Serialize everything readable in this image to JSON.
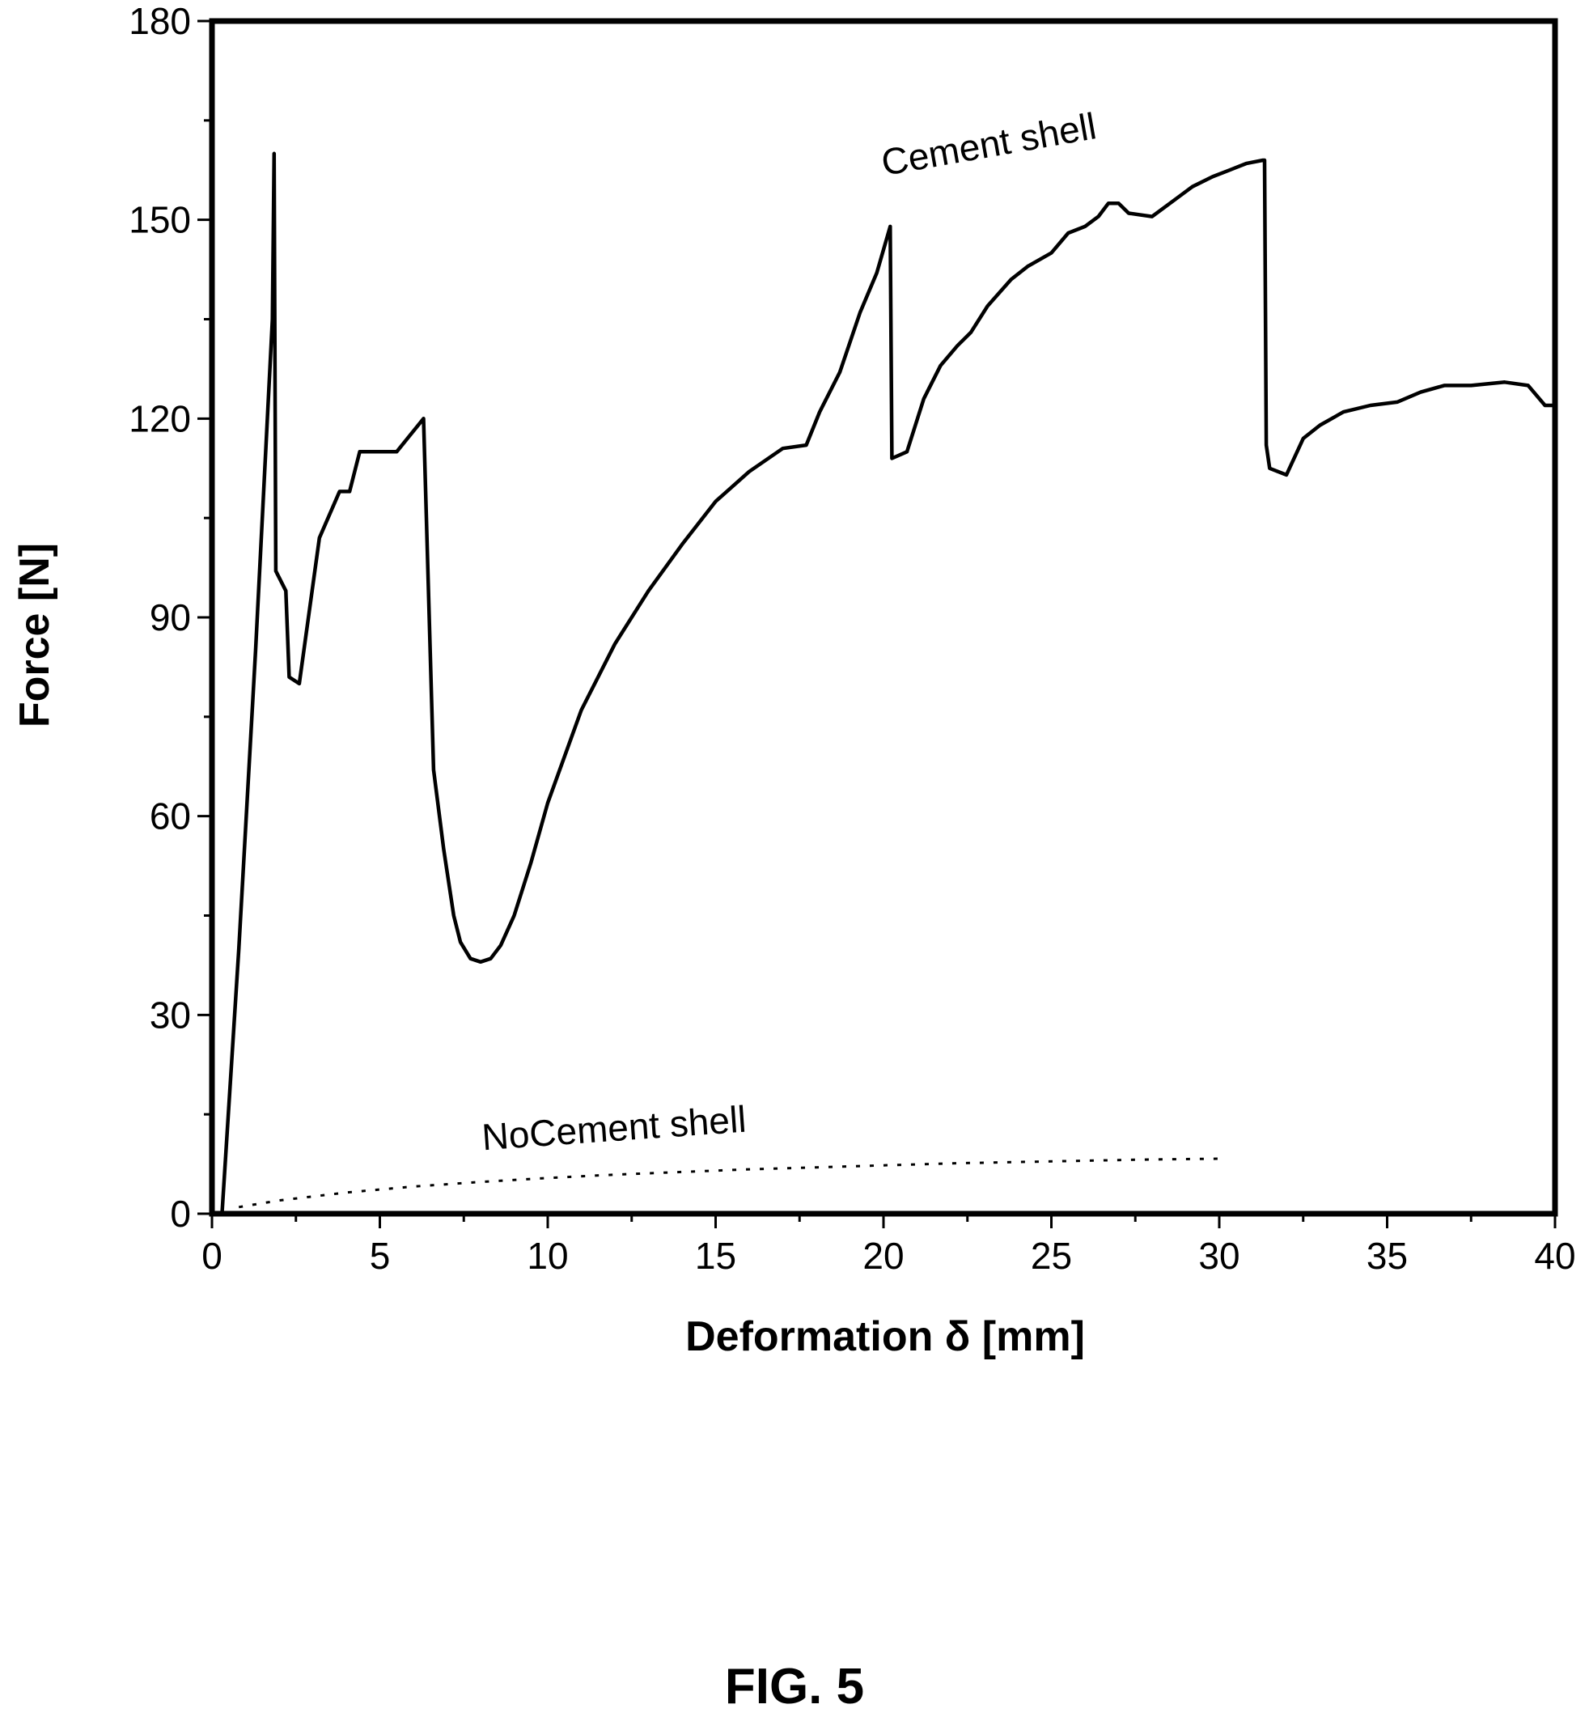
{
  "figure_label": "FIG. 5",
  "chart_data": {
    "type": "line",
    "title": "",
    "xlabel": "Deformation δ [mm]",
    "ylabel": "Force [N]",
    "xlim": [
      0,
      40
    ],
    "ylim": [
      0,
      180
    ],
    "xticks": [
      0,
      5,
      10,
      15,
      20,
      25,
      30,
      35,
      40
    ],
    "yticks": [
      0,
      30,
      60,
      90,
      120,
      150,
      180
    ],
    "grid": false,
    "legend": "none",
    "series": [
      {
        "name": "Cement shell",
        "style": "solid",
        "x": [
          0.3,
          0.8,
          1.3,
          1.8,
          1.85,
          1.9,
          2.2,
          2.3,
          2.6,
          3.2,
          3.8,
          4.1,
          4.4,
          5.0,
          5.5,
          6.3,
          6.6,
          6.9,
          7.2,
          7.4,
          7.7,
          8.0,
          8.3,
          8.6,
          9.0,
          9.5,
          10.0,
          11.0,
          12.0,
          13.0,
          14.0,
          15.0,
          16.0,
          17.0,
          17.7,
          18.1,
          18.7,
          19.3,
          19.8,
          20.2,
          20.25,
          20.7,
          21.2,
          21.7,
          22.2,
          22.6,
          23.1,
          23.8,
          24.3,
          25.0,
          25.5,
          26.0,
          26.4,
          26.7,
          27.0,
          27.3,
          28.0,
          28.8,
          29.2,
          29.8,
          30.3,
          30.8,
          31.3,
          31.35,
          31.4,
          31.5,
          32.0,
          32.5,
          33.0,
          33.7,
          34.5,
          35.3,
          36.0,
          36.7,
          37.5,
          38.5,
          39.2,
          39.7,
          40.0
        ],
        "y": [
          0,
          40,
          85,
          135,
          160,
          97,
          94,
          81,
          80,
          102,
          109,
          109,
          115,
          115,
          115,
          120,
          67,
          55,
          45,
          41,
          38.5,
          38,
          38.5,
          40.5,
          45,
          53,
          62,
          76,
          86,
          94,
          101,
          107.5,
          112,
          115.5,
          116,
          121,
          127,
          136,
          142,
          149,
          114,
          115,
          123,
          128,
          131,
          133,
          137,
          141,
          143,
          145,
          148,
          149,
          150.5,
          152.5,
          152.5,
          151,
          150.5,
          153.5,
          155,
          156.5,
          157.5,
          158.5,
          159,
          159,
          116,
          112.5,
          111.5,
          117,
          119,
          121,
          122,
          122.5,
          124,
          125,
          125,
          125.5,
          125,
          122,
          122
        ]
      },
      {
        "name": "NoCement shell",
        "style": "dotted",
        "x": [
          0.8,
          2,
          4,
          6,
          8,
          10,
          12,
          14,
          16,
          18,
          20,
          22,
          24,
          26,
          28,
          30
        ],
        "y": [
          1,
          2,
          3.2,
          4.1,
          4.8,
          5.4,
          5.9,
          6.3,
          6.7,
          7.0,
          7.3,
          7.6,
          7.8,
          8.0,
          8.2,
          8.3
        ]
      }
    ],
    "annotations": [
      {
        "text": "Cement shell",
        "x": 23.2,
        "y": 159.5,
        "rotation": -10
      },
      {
        "text": "NoCement shell",
        "x": 12.0,
        "y": 11.0,
        "rotation": -4
      }
    ]
  }
}
